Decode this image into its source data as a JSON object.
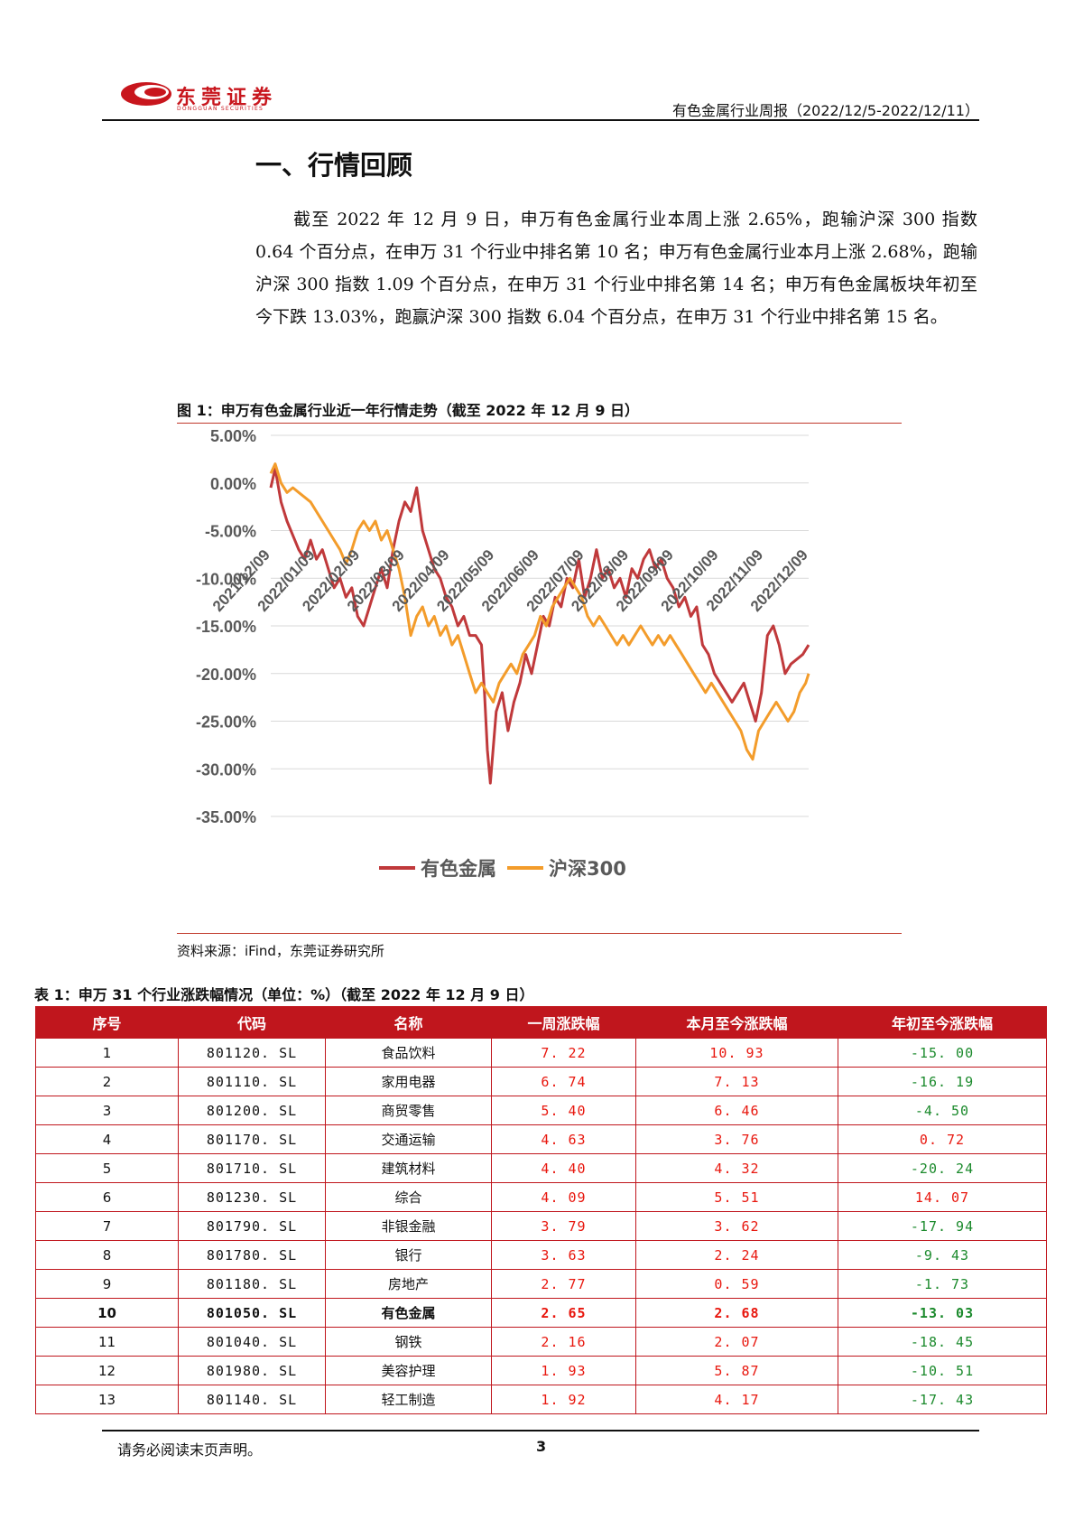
{
  "header": {
    "logo_cn": "东莞证券",
    "logo_en": "DONGGUAN SECURITIES",
    "title": "有色金属行业周报（2022/12/5-2022/12/11）"
  },
  "section": {
    "title": "一、行情回顾",
    "paragraph": "截至 2022 年 12 月 9 日，申万有色金属行业本周上涨 2.65%，跑输沪深 300 指数 0.64 个百分点，在申万 31 个行业中排名第 10 名；申万有色金属行业本月上涨 2.68%，跑输沪深 300 指数 1.09 个百分点，在申万 31 个行业中排名第 14 名；申万有色金属板块年初至今下跌 13.03%，跑赢沪深 300 指数 6.04 个百分点，在申万 31 个行业中排名第 15 名。"
  },
  "figure": {
    "caption": "图 1：申万有色金属行业近一年行情走势（截至 2022 年 12 月 9 日）",
    "source": "资料来源：iFind，东莞证券研究所"
  },
  "chart_data": {
    "type": "line",
    "x": [
      "2021/12/09",
      "2022/01/09",
      "2022/02/09",
      "2022/03/09",
      "2022/04/09",
      "2022/05/09",
      "2022/06/09",
      "2022/07/09",
      "2022/08/09",
      "2022/09/09",
      "2022/10/09",
      "2022/11/09",
      "2022/12/09"
    ],
    "y_ticks": [
      "5.00%",
      "0.00%",
      "-5.00%",
      "-10.00%",
      "-15.00%",
      "-20.00%",
      "-25.00%",
      "-30.00%",
      "-35.00%"
    ],
    "ylim": [
      -35,
      5
    ],
    "grid": true,
    "legend": "bottom",
    "series": [
      {
        "name": "有色金属",
        "color": "#c0393b",
        "points": [
          [
            "2021-12-09",
            -0.5
          ],
          [
            "2021-12-12",
            1.5
          ],
          [
            "2021-12-16",
            -2
          ],
          [
            "2021-12-20",
            -4
          ],
          [
            "2021-12-24",
            -5.5
          ],
          [
            "2021-12-28",
            -7
          ],
          [
            "2022-01-01",
            -8
          ],
          [
            "2022-01-05",
            -6
          ],
          [
            "2022-01-09",
            -8
          ],
          [
            "2022-01-13",
            -7
          ],
          [
            "2022-01-17",
            -9
          ],
          [
            "2022-01-21",
            -11
          ],
          [
            "2022-01-25",
            -10
          ],
          [
            "2022-01-29",
            -12
          ],
          [
            "2022-02-02",
            -11
          ],
          [
            "2022-02-06",
            -14
          ],
          [
            "2022-02-10",
            -15
          ],
          [
            "2022-02-14",
            -13
          ],
          [
            "2022-02-18",
            -11
          ],
          [
            "2022-02-22",
            -9
          ],
          [
            "2022-02-26",
            -11
          ],
          [
            "2022-03-02",
            -7
          ],
          [
            "2022-03-06",
            -4
          ],
          [
            "2022-03-10",
            -2
          ],
          [
            "2022-03-14",
            -3
          ],
          [
            "2022-03-18",
            -0.5
          ],
          [
            "2022-03-22",
            -5
          ],
          [
            "2022-03-26",
            -7
          ],
          [
            "2022-03-30",
            -9
          ],
          [
            "2022-04-03",
            -10
          ],
          [
            "2022-04-07",
            -12
          ],
          [
            "2022-04-11",
            -13
          ],
          [
            "2022-04-15",
            -15
          ],
          [
            "2022-04-19",
            -14
          ],
          [
            "2022-04-23",
            -16
          ],
          [
            "2022-04-27",
            -16
          ],
          [
            "2022-05-01",
            -17
          ],
          [
            "2022-05-03",
            -22
          ],
          [
            "2022-05-05",
            -28
          ],
          [
            "2022-05-07",
            -31.5
          ],
          [
            "2022-05-11",
            -24
          ],
          [
            "2022-05-15",
            -22
          ],
          [
            "2022-05-19",
            -26
          ],
          [
            "2022-05-23",
            -23
          ],
          [
            "2022-05-27",
            -21
          ],
          [
            "2022-05-31",
            -18
          ],
          [
            "2022-06-04",
            -20
          ],
          [
            "2022-06-08",
            -17
          ],
          [
            "2022-06-12",
            -14
          ],
          [
            "2022-06-16",
            -15
          ],
          [
            "2022-06-20",
            -12
          ],
          [
            "2022-06-24",
            -13
          ],
          [
            "2022-06-28",
            -10
          ],
          [
            "2022-07-02",
            -11
          ],
          [
            "2022-07-06",
            -8
          ],
          [
            "2022-07-10",
            -12
          ],
          [
            "2022-07-14",
            -10
          ],
          [
            "2022-07-18",
            -7
          ],
          [
            "2022-07-22",
            -10
          ],
          [
            "2022-07-26",
            -9
          ],
          [
            "2022-07-30",
            -11
          ],
          [
            "2022-08-03",
            -10
          ],
          [
            "2022-08-07",
            -12
          ],
          [
            "2022-08-11",
            -9
          ],
          [
            "2022-08-15",
            -10
          ],
          [
            "2022-08-19",
            -8
          ],
          [
            "2022-08-23",
            -7
          ],
          [
            "2022-08-27",
            -9
          ],
          [
            "2022-08-31",
            -8
          ],
          [
            "2022-09-04",
            -10
          ],
          [
            "2022-09-08",
            -11
          ],
          [
            "2022-09-12",
            -13
          ],
          [
            "2022-09-16",
            -12
          ],
          [
            "2022-09-20",
            -14
          ],
          [
            "2022-09-24",
            -13
          ],
          [
            "2022-09-28",
            -17
          ],
          [
            "2022-10-02",
            -18
          ],
          [
            "2022-10-06",
            -20
          ],
          [
            "2022-10-10",
            -21
          ],
          [
            "2022-10-14",
            -22
          ],
          [
            "2022-10-18",
            -23
          ],
          [
            "2022-10-22",
            -22
          ],
          [
            "2022-10-26",
            -21
          ],
          [
            "2022-10-30",
            -23
          ],
          [
            "2022-11-03",
            -25
          ],
          [
            "2022-11-07",
            -22
          ],
          [
            "2022-11-11",
            -16
          ],
          [
            "2022-11-15",
            -15
          ],
          [
            "2022-11-19",
            -17
          ],
          [
            "2022-11-23",
            -20
          ],
          [
            "2022-11-27",
            -19
          ],
          [
            "2022-12-01",
            -18.5
          ],
          [
            "2022-12-05",
            -18
          ],
          [
            "2022-12-09",
            -17
          ]
        ]
      },
      {
        "name": "沪深300",
        "color": "#f39c2b",
        "points": [
          [
            "2021-12-09",
            1
          ],
          [
            "2021-12-12",
            2
          ],
          [
            "2021-12-16",
            0
          ],
          [
            "2021-12-20",
            -1
          ],
          [
            "2021-12-24",
            -0.5
          ],
          [
            "2021-12-28",
            -1
          ],
          [
            "2022-01-01",
            -1.5
          ],
          [
            "2022-01-05",
            -2
          ],
          [
            "2022-01-09",
            -3
          ],
          [
            "2022-01-13",
            -4
          ],
          [
            "2022-01-17",
            -5
          ],
          [
            "2022-01-21",
            -6
          ],
          [
            "2022-01-25",
            -7
          ],
          [
            "2022-01-29",
            -8.5
          ],
          [
            "2022-02-02",
            -7
          ],
          [
            "2022-02-06",
            -5
          ],
          [
            "2022-02-10",
            -4
          ],
          [
            "2022-02-14",
            -5
          ],
          [
            "2022-02-18",
            -4
          ],
          [
            "2022-02-22",
            -6
          ],
          [
            "2022-02-26",
            -5
          ],
          [
            "2022-03-02",
            -7
          ],
          [
            "2022-03-06",
            -9
          ],
          [
            "2022-03-10",
            -12
          ],
          [
            "2022-03-14",
            -16
          ],
          [
            "2022-03-18",
            -14
          ],
          [
            "2022-03-22",
            -13
          ],
          [
            "2022-03-26",
            -15
          ],
          [
            "2022-03-30",
            -14
          ],
          [
            "2022-04-03",
            -16
          ],
          [
            "2022-04-07",
            -15
          ],
          [
            "2022-04-11",
            -17
          ],
          [
            "2022-04-15",
            -16
          ],
          [
            "2022-04-19",
            -18
          ],
          [
            "2022-04-23",
            -20
          ],
          [
            "2022-04-27",
            -22
          ],
          [
            "2022-05-01",
            -21
          ],
          [
            "2022-05-05",
            -22
          ],
          [
            "2022-05-09",
            -23
          ],
          [
            "2022-05-13",
            -21
          ],
          [
            "2022-05-17",
            -20
          ],
          [
            "2022-05-21",
            -19
          ],
          [
            "2022-05-25",
            -20
          ],
          [
            "2022-05-29",
            -18
          ],
          [
            "2022-06-02",
            -17
          ],
          [
            "2022-06-06",
            -16
          ],
          [
            "2022-06-10",
            -14
          ],
          [
            "2022-06-14",
            -15
          ],
          [
            "2022-06-18",
            -13
          ],
          [
            "2022-06-22",
            -12
          ],
          [
            "2022-06-26",
            -11
          ],
          [
            "2022-06-30",
            -10
          ],
          [
            "2022-07-04",
            -11
          ],
          [
            "2022-07-08",
            -12
          ],
          [
            "2022-07-12",
            -14
          ],
          [
            "2022-07-16",
            -15
          ],
          [
            "2022-07-20",
            -14
          ],
          [
            "2022-07-24",
            -15
          ],
          [
            "2022-07-28",
            -16
          ],
          [
            "2022-08-01",
            -17
          ],
          [
            "2022-08-05",
            -16
          ],
          [
            "2022-08-09",
            -17
          ],
          [
            "2022-08-13",
            -16
          ],
          [
            "2022-08-17",
            -15
          ],
          [
            "2022-08-21",
            -16
          ],
          [
            "2022-08-25",
            -17
          ],
          [
            "2022-08-29",
            -16
          ],
          [
            "2022-09-02",
            -17
          ],
          [
            "2022-09-06",
            -16
          ],
          [
            "2022-09-10",
            -17
          ],
          [
            "2022-09-14",
            -18
          ],
          [
            "2022-09-18",
            -19
          ],
          [
            "2022-09-22",
            -20
          ],
          [
            "2022-09-26",
            -21
          ],
          [
            "2022-09-30",
            -22
          ],
          [
            "2022-10-04",
            -21
          ],
          [
            "2022-10-08",
            -22
          ],
          [
            "2022-10-12",
            -23
          ],
          [
            "2022-10-16",
            -24
          ],
          [
            "2022-10-20",
            -25
          ],
          [
            "2022-10-24",
            -26
          ],
          [
            "2022-10-28",
            -28
          ],
          [
            "2022-11-01",
            -29
          ],
          [
            "2022-11-05",
            -26
          ],
          [
            "2022-11-09",
            -25
          ],
          [
            "2022-11-13",
            -24
          ],
          [
            "2022-11-17",
            -23
          ],
          [
            "2022-11-21",
            -24
          ],
          [
            "2022-11-25",
            -25
          ],
          [
            "2022-11-29",
            -24
          ],
          [
            "2022-12-03",
            -22
          ],
          [
            "2022-12-07",
            -21
          ],
          [
            "2022-12-09",
            -20
          ]
        ]
      }
    ]
  },
  "table": {
    "caption": "表 1：申万 31 个行业涨跌幅情况（单位：%）（截至 2022 年 12 月 9 日）",
    "headers": [
      "序号",
      "代码",
      "名称",
      "一周涨跌幅",
      "本月至今涨跌幅",
      "年初至今涨跌幅"
    ],
    "rows": [
      [
        "1",
        "801120. SL",
        "食品饮料",
        "7. 22",
        "10. 93",
        "-15. 00"
      ],
      [
        "2",
        "801110. SL",
        "家用电器",
        "6. 74",
        "7. 13",
        "-16. 19"
      ],
      [
        "3",
        "801200. SL",
        "商贸零售",
        "5. 40",
        "6. 46",
        "-4. 50"
      ],
      [
        "4",
        "801170. SL",
        "交通运输",
        "4. 63",
        "3. 76",
        "0. 72"
      ],
      [
        "5",
        "801710. SL",
        "建筑材料",
        "4. 40",
        "4. 32",
        "-20. 24"
      ],
      [
        "6",
        "801230. SL",
        "综合",
        "4. 09",
        "5. 51",
        "14. 07"
      ],
      [
        "7",
        "801790. SL",
        "非银金融",
        "3. 79",
        "3. 62",
        "-17. 94"
      ],
      [
        "8",
        "801780. SL",
        "银行",
        "3. 63",
        "2. 24",
        "-9. 43"
      ],
      [
        "9",
        "801180. SL",
        "房地产",
        "2. 77",
        "0. 59",
        "-1. 73"
      ],
      [
        "10",
        "801050. SL",
        "有色金属",
        "2. 65",
        "2. 68",
        "-13. 03"
      ],
      [
        "11",
        "801040. SL",
        "钢铁",
        "2. 16",
        "2. 07",
        "-18. 45"
      ],
      [
        "12",
        "801980. SL",
        "美容护理",
        "1. 93",
        "5. 87",
        "-10. 51"
      ],
      [
        "13",
        "801140. SL",
        "轻工制造",
        "1. 92",
        "4. 17",
        "-17. 43"
      ]
    ],
    "highlight_row_index": 9,
    "colors": {
      "header_bg": "#c0161d",
      "positive": "#e8170e",
      "negative": "#1b8a2c"
    }
  },
  "footer": {
    "note": "请务必阅读末页声明。",
    "page_number": "3"
  }
}
